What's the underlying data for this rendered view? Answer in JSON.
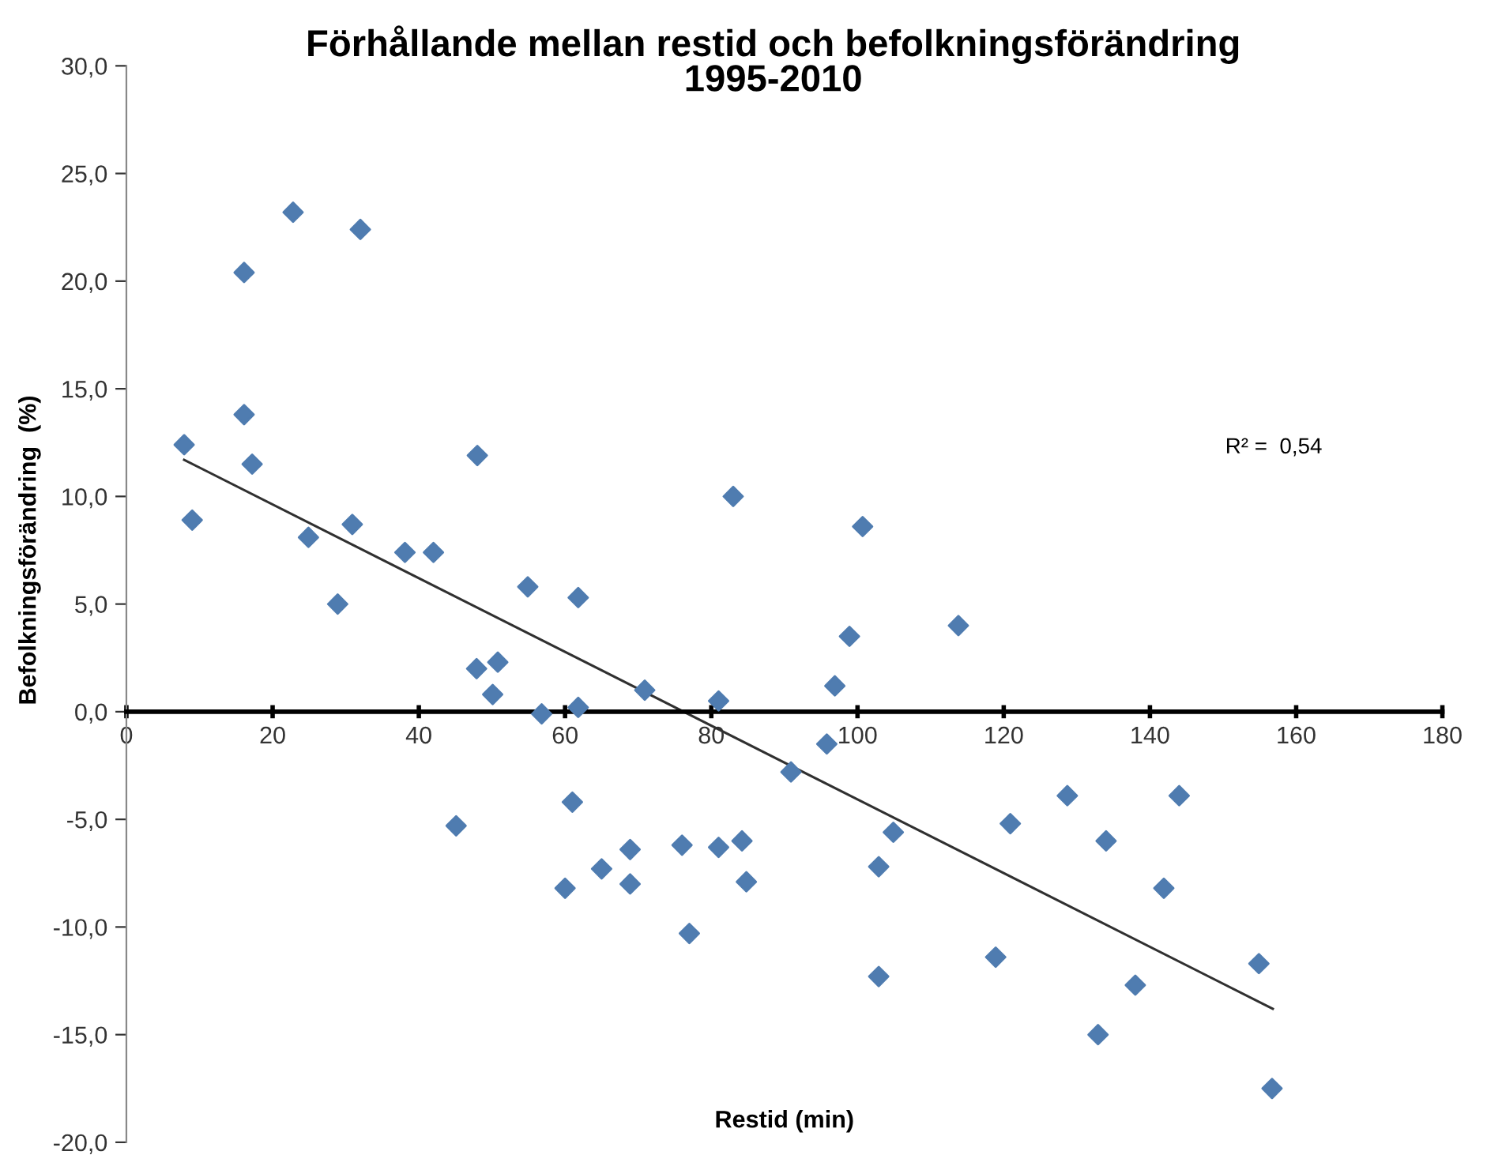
{
  "chart_data": {
    "type": "scatter",
    "title": "Förhållande mellan restid och befolkningsförändring\n1995-2010",
    "xlabel": "Restid (min)",
    "ylabel": "Befolkningsförändring  (%)",
    "annotations": [
      "R² =  0,54"
    ],
    "xlim": [
      0,
      180
    ],
    "xticks": [
      0,
      20,
      40,
      60,
      80,
      100,
      120,
      140,
      160,
      180
    ],
    "ylim": [
      -20,
      30
    ],
    "yticks": [
      {
        "value": -20,
        "label": "-20,0"
      },
      {
        "value": -15,
        "label": "-15,0"
      },
      {
        "value": -10,
        "label": "-10,0"
      },
      {
        "value": -5,
        "label": "-5,0"
      },
      {
        "value": 0,
        "label": "0,0"
      },
      {
        "value": 5,
        "label": "5,0"
      },
      {
        "value": 10,
        "label": "10,0"
      },
      {
        "value": 15,
        "label": "15,0"
      },
      {
        "value": 20,
        "label": "20,0"
      },
      {
        "value": 25,
        "label": "25,0"
      },
      {
        "value": 30,
        "label": "30,0"
      }
    ],
    "grid": false,
    "legend": false,
    "series": [
      {
        "marker": "diamond",
        "color": "#4f7cb0",
        "x": [
          7.9,
          9.0,
          16.1,
          16.1,
          17.2,
          22.8,
          24.9,
          30.9,
          32.0,
          38.1,
          42.0,
          48.0,
          28.9,
          47.9,
          50.8,
          50.1,
          45.1,
          83.0,
          100.7,
          54.9,
          61.8,
          98.9,
          113.8,
          56.8,
          61.8,
          70.9,
          81.0,
          96.9,
          95.8,
          90.9,
          61.0,
          68.9,
          76.0,
          81.0,
          84.2,
          65.0,
          68.9,
          60.0,
          84.8,
          77.0,
          104.9,
          102.9,
          102.9,
          128.7,
          144.0,
          120.9,
          134.0,
          141.9,
          118.9,
          154.9,
          138.0,
          132.9,
          156.7
        ],
        "values": [
          12.4,
          8.9,
          20.4,
          13.8,
          11.5,
          23.2,
          8.1,
          8.7,
          22.4,
          7.4,
          7.4,
          11.9,
          5.0,
          2.0,
          2.3,
          0.8,
          -5.3,
          10.0,
          8.6,
          5.8,
          5.3,
          3.5,
          4.0,
          -0.1,
          0.2,
          1.0,
          0.5,
          1.2,
          -1.5,
          -2.8,
          -4.2,
          -6.4,
          -6.2,
          -6.3,
          -6.0,
          -7.3,
          -8.0,
          -8.2,
          -7.9,
          -10.3,
          -5.6,
          -7.2,
          -12.3,
          -3.9,
          -3.9,
          -5.2,
          -6.0,
          -8.2,
          -11.4,
          -11.7,
          -12.7,
          -15.0,
          -17.5
        ]
      },
      {
        "type": "line",
        "line_style": "solid",
        "color": "#303030",
        "x": [
          7.9,
          156.8
        ],
        "values": [
          11.7,
          -13.8
        ]
      }
    ]
  }
}
